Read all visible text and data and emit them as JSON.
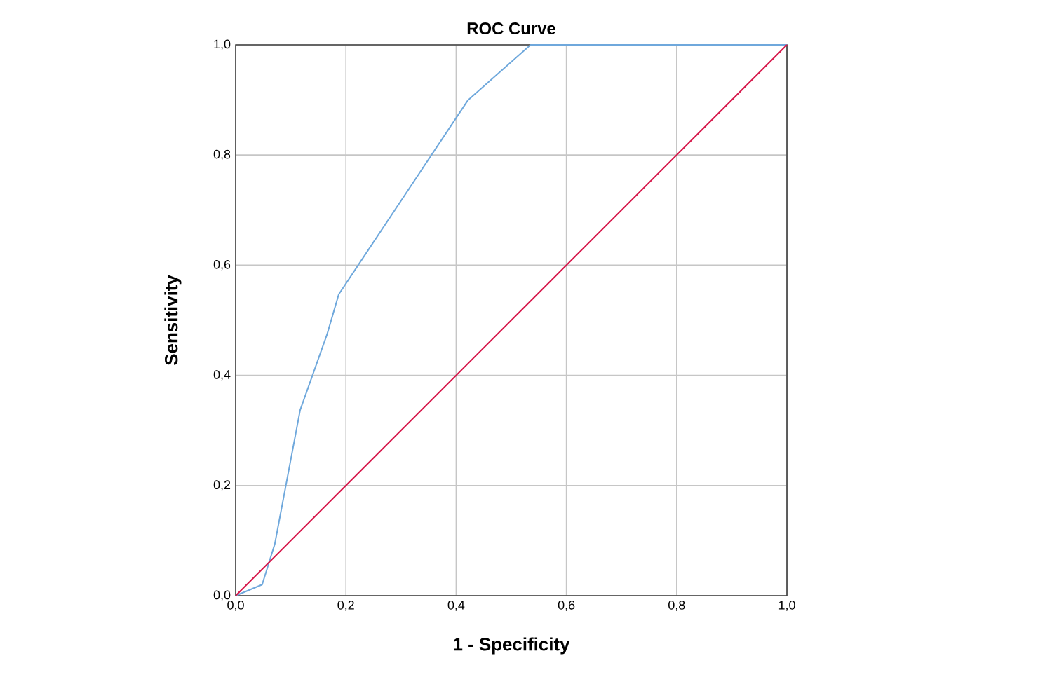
{
  "chart_data": {
    "type": "line",
    "title": "ROC Curve",
    "xlabel": "1 - Specificity",
    "ylabel": "Sensitivity",
    "series": [
      {
        "color": "#6fa8dc",
        "x": [
          0,
          0.048,
          0.071,
          0.117,
          0.166,
          0.187,
          0.421,
          0.535,
          1
        ],
        "values": [
          0,
          0.02,
          0.094,
          0.337,
          0.475,
          0.547,
          0.899,
          1,
          1
        ]
      },
      {
        "color": "#d6174a",
        "x": [
          0,
          1
        ],
        "values": [
          0,
          1
        ]
      }
    ],
    "xlim": [
      0,
      1
    ],
    "ylim": [
      0,
      1
    ],
    "xticks": [
      {
        "value": 0,
        "label": "0,0"
      },
      {
        "value": 0.2,
        "label": "0,2"
      },
      {
        "value": 0.4,
        "label": "0,4"
      },
      {
        "value": 0.6,
        "label": "0,6"
      },
      {
        "value": 0.8,
        "label": "0,8"
      },
      {
        "value": 1,
        "label": "1,0"
      }
    ],
    "yticks": [
      {
        "value": 0,
        "label": "0,0"
      },
      {
        "value": 0.2,
        "label": "0,2"
      },
      {
        "value": 0.4,
        "label": "0,4"
      },
      {
        "value": 0.6,
        "label": "0,6"
      },
      {
        "value": 0.8,
        "label": "0,8"
      },
      {
        "value": 1,
        "label": "1,0"
      }
    ],
    "grid": true,
    "marker": "none",
    "line_style": "solid"
  }
}
